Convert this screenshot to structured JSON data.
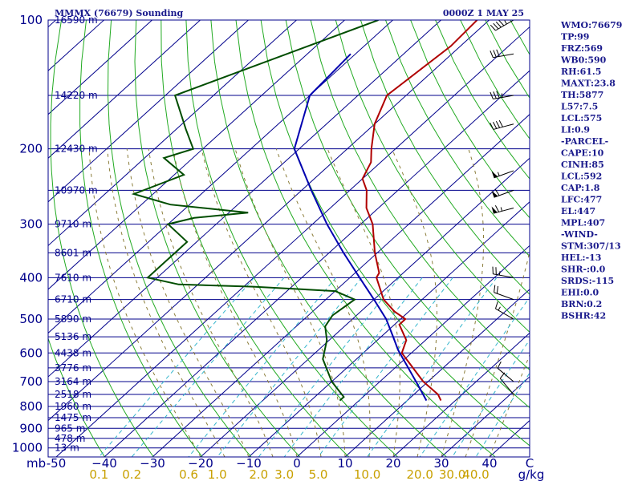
{
  "header": {
    "title": "MMMX (76679) Sounding",
    "time": "0000Z  1 MAY 25"
  },
  "chart_data": {
    "type": "line",
    "title": "MMMX (76679) Sounding",
    "pressure_levels": [
      100,
      200,
      300,
      400,
      500,
      600,
      700,
      800,
      900,
      1000
    ],
    "pressure_labels": [
      "100",
      "200",
      "300",
      "400",
      "500",
      "600",
      "700",
      "800",
      "900",
      "1000"
    ],
    "pressure_unit": "mb",
    "height_labels": [
      {
        "p": 100,
        "label": "16590 m"
      },
      {
        "p": 150,
        "label": "14220 m"
      },
      {
        "p": 200,
        "label": "12430 m"
      },
      {
        "p": 250,
        "label": "10970 m"
      },
      {
        "p": 300,
        "label": "9710 m"
      },
      {
        "p": 350,
        "label": "8601 m"
      },
      {
        "p": 400,
        "label": "7610 m"
      },
      {
        "p": 450,
        "label": "6710 m"
      },
      {
        "p": 500,
        "label": "5890 m"
      },
      {
        "p": 550,
        "label": "5136 m"
      },
      {
        "p": 600,
        "label": "4438 m"
      },
      {
        "p": 650,
        "label": "3776 m"
      },
      {
        "p": 700,
        "label": "3164 m"
      },
      {
        "p": 750,
        "label": "2518 m"
      },
      {
        "p": 800,
        "label": "1960 m"
      },
      {
        "p": 850,
        "label": "1475 m"
      },
      {
        "p": 900,
        "label": "965 m"
      },
      {
        "p": 950,
        "label": "478 m"
      },
      {
        "p": 1000,
        "label": "13 m"
      }
    ],
    "temp_ticks": [
      -50,
      -40,
      -30,
      -20,
      -10,
      0,
      10,
      20,
      30,
      40
    ],
    "temp_tick_labels": [
      "-50",
      "−40",
      "−30",
      "−20",
      "−10",
      "0",
      "10",
      "20",
      "30",
      "40"
    ],
    "temp_unit": "C",
    "mixing_ratio_ticks": [
      {
        "v": 0.1,
        "label": "0.1"
      },
      {
        "v": 0.2,
        "label": "0.2"
      },
      {
        "v": 0.6,
        "label": "0.6"
      },
      {
        "v": 1.0,
        "label": "1.0"
      },
      {
        "v": 2.0,
        "label": "2.0"
      },
      {
        "v": 3.0,
        "label": "3.0"
      },
      {
        "v": 5.0,
        "label": "5.0"
      },
      {
        "v": 10.0,
        "label": "10.0"
      },
      {
        "v": 20.0,
        "label": "20.0"
      },
      {
        "v": 30.0,
        "label": "30.0"
      },
      {
        "v": 40.0,
        "label": "40.0"
      }
    ],
    "mixing_ratio_unit": "g/kg",
    "series": [
      {
        "kind": "temperature",
        "color": "#b00000",
        "points": [
          {
            "p": 100,
            "t": -62.5
          },
          {
            "p": 115,
            "t": -62
          },
          {
            "p": 150,
            "t": -64
          },
          {
            "p": 175,
            "t": -60
          },
          {
            "p": 200,
            "t": -55
          },
          {
            "p": 215,
            "t": -52
          },
          {
            "p": 235,
            "t": -50
          },
          {
            "p": 250,
            "t": -46.5
          },
          {
            "p": 275,
            "t": -42.5
          },
          {
            "p": 300,
            "t": -37.5
          },
          {
            "p": 350,
            "t": -30.5
          },
          {
            "p": 390,
            "t": -25
          },
          {
            "p": 400,
            "t": -24.5
          },
          {
            "p": 450,
            "t": -18
          },
          {
            "p": 480,
            "t": -13
          },
          {
            "p": 500,
            "t": -9
          },
          {
            "p": 515,
            "t": -9
          },
          {
            "p": 560,
            "t": -4
          },
          {
            "p": 600,
            "t": -2
          },
          {
            "p": 700,
            "t": 9
          },
          {
            "p": 750,
            "t": 15
          },
          {
            "p": 775,
            "t": 17
          }
        ]
      },
      {
        "kind": "dewpoint",
        "color": "#004d00",
        "points": [
          {
            "p": 100,
            "t": -83
          },
          {
            "p": 150,
            "t": -108
          },
          {
            "p": 180,
            "t": -98
          },
          {
            "p": 200,
            "t": -92
          },
          {
            "p": 210,
            "t": -96
          },
          {
            "p": 230,
            "t": -88
          },
          {
            "p": 255,
            "t": -94
          },
          {
            "p": 270,
            "t": -84
          },
          {
            "p": 282,
            "t": -66
          },
          {
            "p": 290,
            "t": -76
          },
          {
            "p": 300,
            "t": -80
          },
          {
            "p": 330,
            "t": -72
          },
          {
            "p": 370,
            "t": -72
          },
          {
            "p": 400,
            "t": -72
          },
          {
            "p": 415,
            "t": -64
          },
          {
            "p": 420,
            "t": -48
          },
          {
            "p": 430,
            "t": -30
          },
          {
            "p": 450,
            "t": -24
          },
          {
            "p": 490,
            "t": -25
          },
          {
            "p": 520,
            "t": -24
          },
          {
            "p": 560,
            "t": -20.5
          },
          {
            "p": 620,
            "t": -17
          },
          {
            "p": 700,
            "t": -10
          },
          {
            "p": 760,
            "t": -4
          },
          {
            "p": 775,
            "t": -4
          }
        ]
      },
      {
        "kind": "parcel",
        "color": "#0000b0",
        "points": [
          {
            "p": 120,
            "t": -81
          },
          {
            "p": 150,
            "t": -80
          },
          {
            "p": 200,
            "t": -71
          },
          {
            "p": 250,
            "t": -58
          },
          {
            "p": 300,
            "t": -47
          },
          {
            "p": 350,
            "t": -37
          },
          {
            "p": 400,
            "t": -28
          },
          {
            "p": 450,
            "t": -20
          },
          {
            "p": 500,
            "t": -13
          },
          {
            "p": 550,
            "t": -7.5
          },
          {
            "p": 590,
            "t": -3.5
          },
          {
            "p": 700,
            "t": 7.5
          },
          {
            "p": 775,
            "t": 14
          }
        ]
      }
    ],
    "wind_barbs": [
      {
        "p": 100,
        "dir": 240,
        "spd": 45
      },
      {
        "p": 120,
        "dir": 260,
        "spd": 30
      },
      {
        "p": 150,
        "dir": 260,
        "spd": 35
      },
      {
        "p": 175,
        "dir": 255,
        "spd": 40
      },
      {
        "p": 225,
        "dir": 250,
        "spd": 55
      },
      {
        "p": 250,
        "dir": 250,
        "spd": 60
      },
      {
        "p": 275,
        "dir": 255,
        "spd": 65
      },
      {
        "p": 400,
        "dir": 280,
        "spd": 25
      },
      {
        "p": 450,
        "dir": 290,
        "spd": 20
      },
      {
        "p": 500,
        "dir": 300,
        "spd": 15
      },
      {
        "p": 700,
        "dir": 310,
        "spd": 10
      },
      {
        "p": 750,
        "dir": 320,
        "spd": 10
      }
    ]
  },
  "indices": [
    "WMO:76679",
    "TP:99",
    "FRZ:569",
    "WB0:590",
    "RH:61.5",
    "MAXT:23.8",
    "TH:5877",
    "L57:7.5",
    "LCL:575",
    "LI:0.9",
    "-PARCEL-",
    "CAPE:10",
    "CINH:85",
    "LCL:592",
    "CAP:1.8",
    "LFC:477",
    "EL:447",
    "MPL:407",
    "-WIND-",
    "STM:307/13",
    "HEL:-13",
    "SHR-:0.0",
    "SRDS:-115",
    "EHI:0.0",
    "BRN:0.2",
    "BSHR:42"
  ]
}
